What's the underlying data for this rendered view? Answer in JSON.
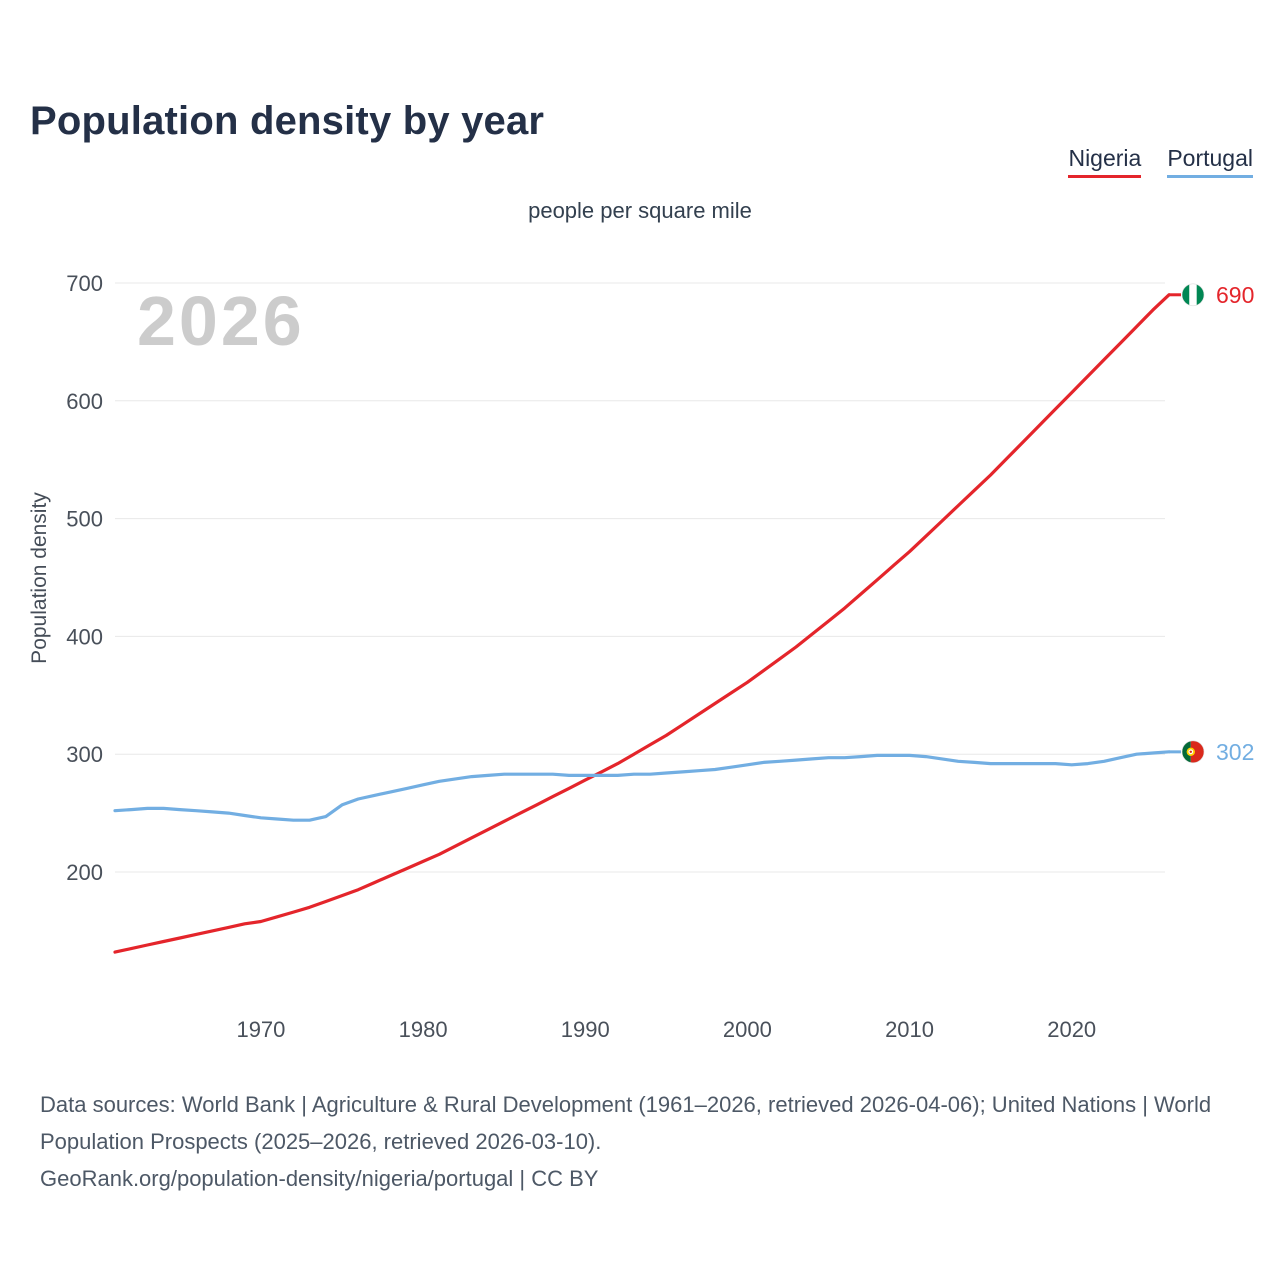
{
  "page": {
    "footer": {
      "line1": "Data sources: World Bank | Agriculture & Rural Development (1961–2026, retrieved 2026-04-06); United Nations | World Population Prospects (2025–2026, retrieved 2026-03-10).",
      "line2": "GeoRank.org/population-density/nigeria/portugal | CC BY"
    }
  },
  "chart_data": {
    "type": "line",
    "title": "Population density by year",
    "subtitle": "people per square mile",
    "ylabel": "Population density",
    "xlabel": "",
    "watermark": "2026",
    "grid": "horizontal",
    "legend_position": "top-right",
    "y_ticks": [
      200,
      300,
      400,
      500,
      600,
      700
    ],
    "x_ticks": [
      1970,
      1980,
      1990,
      2000,
      2010,
      2020
    ],
    "ylim": [
      125,
      730
    ],
    "x_range": [
      1961,
      2026
    ],
    "x": [
      1961,
      1962,
      1963,
      1964,
      1965,
      1966,
      1967,
      1968,
      1969,
      1970,
      1971,
      1972,
      1973,
      1974,
      1975,
      1976,
      1977,
      1978,
      1979,
      1980,
      1981,
      1982,
      1983,
      1984,
      1985,
      1986,
      1987,
      1988,
      1989,
      1990,
      1991,
      1992,
      1993,
      1994,
      1995,
      1996,
      1997,
      1998,
      1999,
      2000,
      2001,
      2002,
      2003,
      2004,
      2005,
      2006,
      2007,
      2008,
      2009,
      2010,
      2011,
      2012,
      2013,
      2014,
      2015,
      2016,
      2017,
      2018,
      2019,
      2020,
      2021,
      2022,
      2023,
      2024,
      2025,
      2026
    ],
    "series": [
      {
        "name": "Nigeria",
        "color": "#e4252b",
        "flag_icon": "nigeria-flag-icon",
        "end_value": 690,
        "end_label": "690",
        "values": [
          132,
          135,
          138,
          141,
          144,
          147,
          150,
          153,
          156,
          158,
          162,
          166,
          170,
          175,
          180,
          185,
          191,
          197,
          203,
          209,
          215,
          222,
          229,
          236,
          243,
          250,
          257,
          264,
          271,
          278,
          285,
          292,
          300,
          308,
          316,
          325,
          334,
          343,
          352,
          361,
          371,
          381,
          391,
          402,
          413,
          424,
          436,
          448,
          460,
          472,
          485,
          498,
          511,
          524,
          537,
          551,
          565,
          579,
          593,
          607,
          621,
          635,
          649,
          663,
          677,
          690
        ]
      },
      {
        "name": "Portugal",
        "color": "#72aee2",
        "flag_icon": "portugal-flag-icon",
        "end_value": 302,
        "end_label": "302",
        "values": [
          252,
          253,
          254,
          254,
          253,
          252,
          251,
          250,
          248,
          246,
          245,
          244,
          244,
          247,
          257,
          262,
          265,
          268,
          271,
          274,
          277,
          279,
          281,
          282,
          283,
          283,
          283,
          283,
          282,
          282,
          282,
          282,
          283,
          283,
          284,
          285,
          286,
          287,
          289,
          291,
          293,
          294,
          295,
          296,
          297,
          297,
          298,
          299,
          299,
          299,
          298,
          296,
          294,
          293,
          292,
          292,
          292,
          292,
          292,
          291,
          292,
          294,
          297,
          300,
          301,
          302
        ]
      }
    ]
  }
}
